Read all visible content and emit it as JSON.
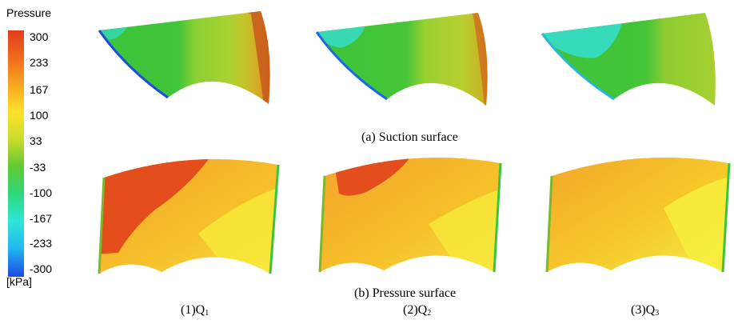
{
  "legend": {
    "title": "Pressure",
    "unit": "[kPa]",
    "ticks": [
      "300",
      "233",
      "167",
      "100",
      "33",
      "-33",
      "-100",
      "-167",
      "-233",
      "-300"
    ],
    "colors": [
      "#e8401c",
      "#f4931e",
      "#fdbf1f",
      "#f9f22a",
      "#b3d630",
      "#3ac63c",
      "#2de08f",
      "#2ee7e3",
      "#1aa6f2",
      "#1a4be6"
    ]
  },
  "captions": {
    "suction": "(a) Suction surface",
    "pressure": "(b) Pressure surface"
  },
  "columns": [
    {
      "prefix": "(1)Q",
      "sub": "1"
    },
    {
      "prefix": "(2)Q",
      "sub": "2"
    },
    {
      "prefix": "(3)Q",
      "sub": "3"
    }
  ]
}
